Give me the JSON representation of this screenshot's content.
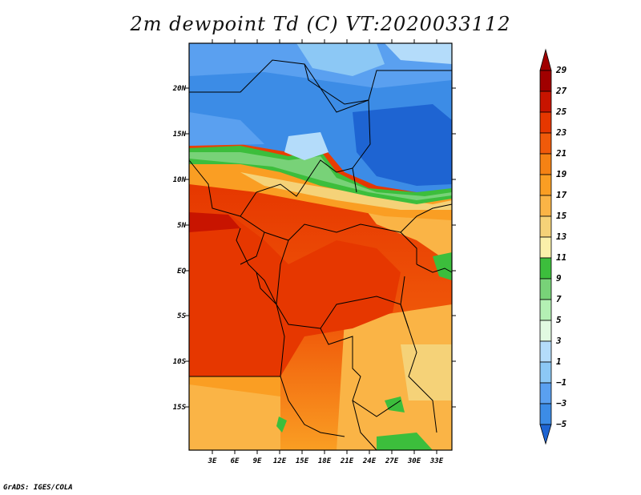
{
  "title": "2m dewpoint Td (C) VT:2020033112",
  "credit": "GrADS: IGES/COLA",
  "map": {
    "lon_labels": [
      "3E",
      "6E",
      "9E",
      "12E",
      "15E",
      "18E",
      "21E",
      "24E",
      "27E",
      "30E",
      "33E"
    ],
    "lat_labels": [
      "20N",
      "15N",
      "10N",
      "5N",
      "EQ",
      "5S",
      "10S",
      "15S"
    ]
  },
  "colorbar": {
    "labels": [
      "29",
      "27",
      "25",
      "23",
      "21",
      "19",
      "17",
      "15",
      "13",
      "11",
      "9",
      "7",
      "5",
      "3",
      "1",
      "−1",
      "−3",
      "−5"
    ],
    "colors": [
      "#a00000",
      "#c81400",
      "#e63700",
      "#f05a0a",
      "#f58214",
      "#fa9e23",
      "#fab446",
      "#f5d278",
      "#faf0aa",
      "#3cbe3c",
      "#78d278",
      "#b4f0b4",
      "#e1fae1",
      "#b4dcfa",
      "#8cc8f5",
      "#5aa0f0",
      "#3c8ce6",
      "#1e64d2"
    ]
  }
}
